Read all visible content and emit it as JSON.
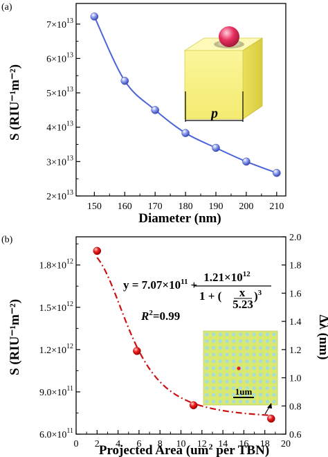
{
  "panel_a_label": "(a)",
  "panel_b_label": "(b)",
  "chart_data": [
    {
      "type": "line",
      "panel": "(a)",
      "xlabel": "Diameter (nm)",
      "ylabel": "S (RIU⁻¹m⁻²)",
      "xlim": [
        144,
        213
      ],
      "ylim": [
        20000000000000.0,
        76000000000000.0
      ],
      "xticks": [
        150,
        160,
        170,
        180,
        190,
        200,
        210
      ],
      "yticks": [
        {
          "value": 20000000000000.0,
          "mant": "2×10",
          "exp": "13"
        },
        {
          "value": 30000000000000.0,
          "mant": "3×10",
          "exp": "13"
        },
        {
          "value": 40000000000000.0,
          "mant": "4×10",
          "exp": "13"
        },
        {
          "value": 50000000000000.0,
          "mant": "5×10",
          "exp": "13"
        },
        {
          "value": 60000000000000.0,
          "mant": "6×10",
          "exp": "13"
        },
        {
          "value": 70000000000000.0,
          "mant": "7×10",
          "exp": "13"
        }
      ],
      "series": [
        {
          "color": "#4a63d8",
          "x": [
            150,
            160,
            170,
            180,
            190,
            200,
            210
          ],
          "y": [
            72200000000000.0,
            53500000000000.0,
            45000000000000.0,
            38300000000000.0,
            34000000000000.0,
            30000000000000.0,
            26700000000000.0
          ]
        }
      ],
      "inset": {
        "label": "p"
      }
    },
    {
      "type": "scatter",
      "panel": "(b)",
      "xlabel": "Projected Area (um² per TBN)",
      "ylabel_left": "S (RIU⁻¹m⁻²)",
      "ylabel_right": "Δλ (nm)",
      "xlim": [
        0,
        20
      ],
      "ylim": [
        600000000000.0,
        2000000000000.0
      ],
      "ylim_right": [
        0.6,
        2.0
      ],
      "xticks": [
        0,
        2,
        4,
        6,
        8,
        10,
        12,
        14,
        16,
        18,
        20
      ],
      "yticks": [
        {
          "value": 600000000000.0,
          "mant": "6.0×10",
          "exp": "11"
        },
        {
          "value": 900000000000.0,
          "mant": "9.0×10",
          "exp": "11"
        },
        {
          "value": 1200000000000.0,
          "mant": "1.2×10",
          "exp": "12"
        },
        {
          "value": 1500000000000.0,
          "mant": "1.5×10",
          "exp": "12"
        },
        {
          "value": 1800000000000.0,
          "mant": "1.8×10",
          "exp": "12"
        }
      ],
      "yticks_right": [
        "0.6",
        "0.8",
        "1.0",
        "1.2",
        "1.4",
        "1.6",
        "1.8",
        "2.0"
      ],
      "series": [
        {
          "color": "#e02020",
          "x": [
            2.0,
            5.8,
            11.2,
            18.6
          ],
          "y": [
            1900000000000.0,
            1190000000000.0,
            805000000000.0,
            710000000000.0
          ]
        }
      ],
      "fit": {
        "equation": "y = 7.07×10¹¹ + 1.21×10¹² / (1 + (x / 5.23)³)",
        "a": 707000000000.0,
        "b": 1210000000000.0,
        "c": 5.23,
        "n": 3,
        "color": "#cc1111",
        "r2_text": "=0.99",
        "r2_symbol": "R",
        "r2_exp": "2"
      },
      "equation_parts": {
        "lhs": "y = 7.07×10",
        "lhs_exp": "11",
        "plus": "+",
        "num": "1.21×10",
        "num_exp": "12",
        "den_one": "1 + (",
        "den_x": "x",
        "den_c": "5.23",
        "den_close": ")",
        "den_exp": "3"
      },
      "inset": {
        "scale_label": "1um"
      }
    }
  ]
}
